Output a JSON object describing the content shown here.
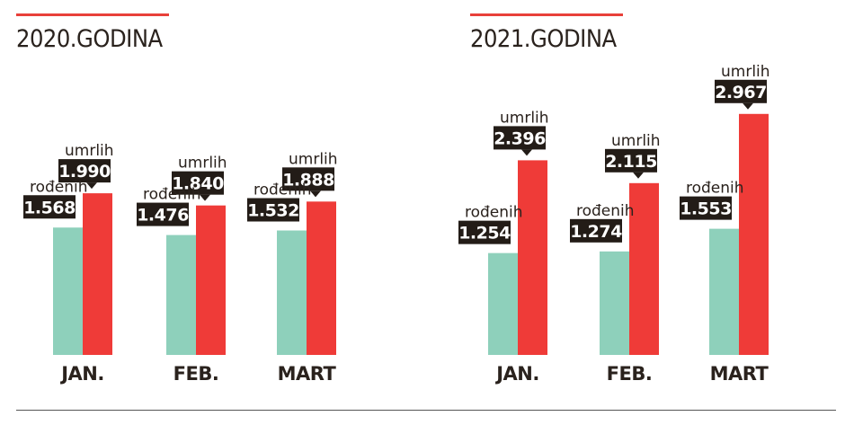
{
  "chart_data": [
    {
      "type": "bar",
      "title": "2020.GODINA",
      "categories": [
        "JAN.",
        "FEB.",
        "MART"
      ],
      "series": [
        {
          "name": "rođenih",
          "values": [
            1568,
            1476,
            1532
          ],
          "labels": [
            "1.568",
            "1.476",
            "1.532"
          ]
        },
        {
          "name": "umrlih",
          "values": [
            1990,
            1840,
            1888
          ],
          "labels": [
            "1.990",
            "1.840",
            "1.888"
          ]
        }
      ],
      "xlabel": "",
      "ylabel": "",
      "ylim": [
        0,
        3200
      ]
    },
    {
      "type": "bar",
      "title": "2021.GODINA",
      "categories": [
        "JAN.",
        "FEB.",
        "MART"
      ],
      "series": [
        {
          "name": "rođenih",
          "values": [
            1254,
            1274,
            1553
          ],
          "labels": [
            "1.254",
            "1.274",
            "1.553"
          ]
        },
        {
          "name": "umrlih",
          "values": [
            2396,
            2115,
            2967
          ],
          "labels": [
            "2.396",
            "2.115",
            "2.967"
          ]
        }
      ],
      "xlabel": "",
      "ylabel": "",
      "ylim": [
        0,
        3200
      ]
    }
  ],
  "colors": {
    "births": "#8ed0bb",
    "deaths": "#ef3b38",
    "label_bg": "#231c17",
    "label_text": "#ffffff",
    "text": "#2a221d",
    "accent_rule": "#e8403a"
  }
}
